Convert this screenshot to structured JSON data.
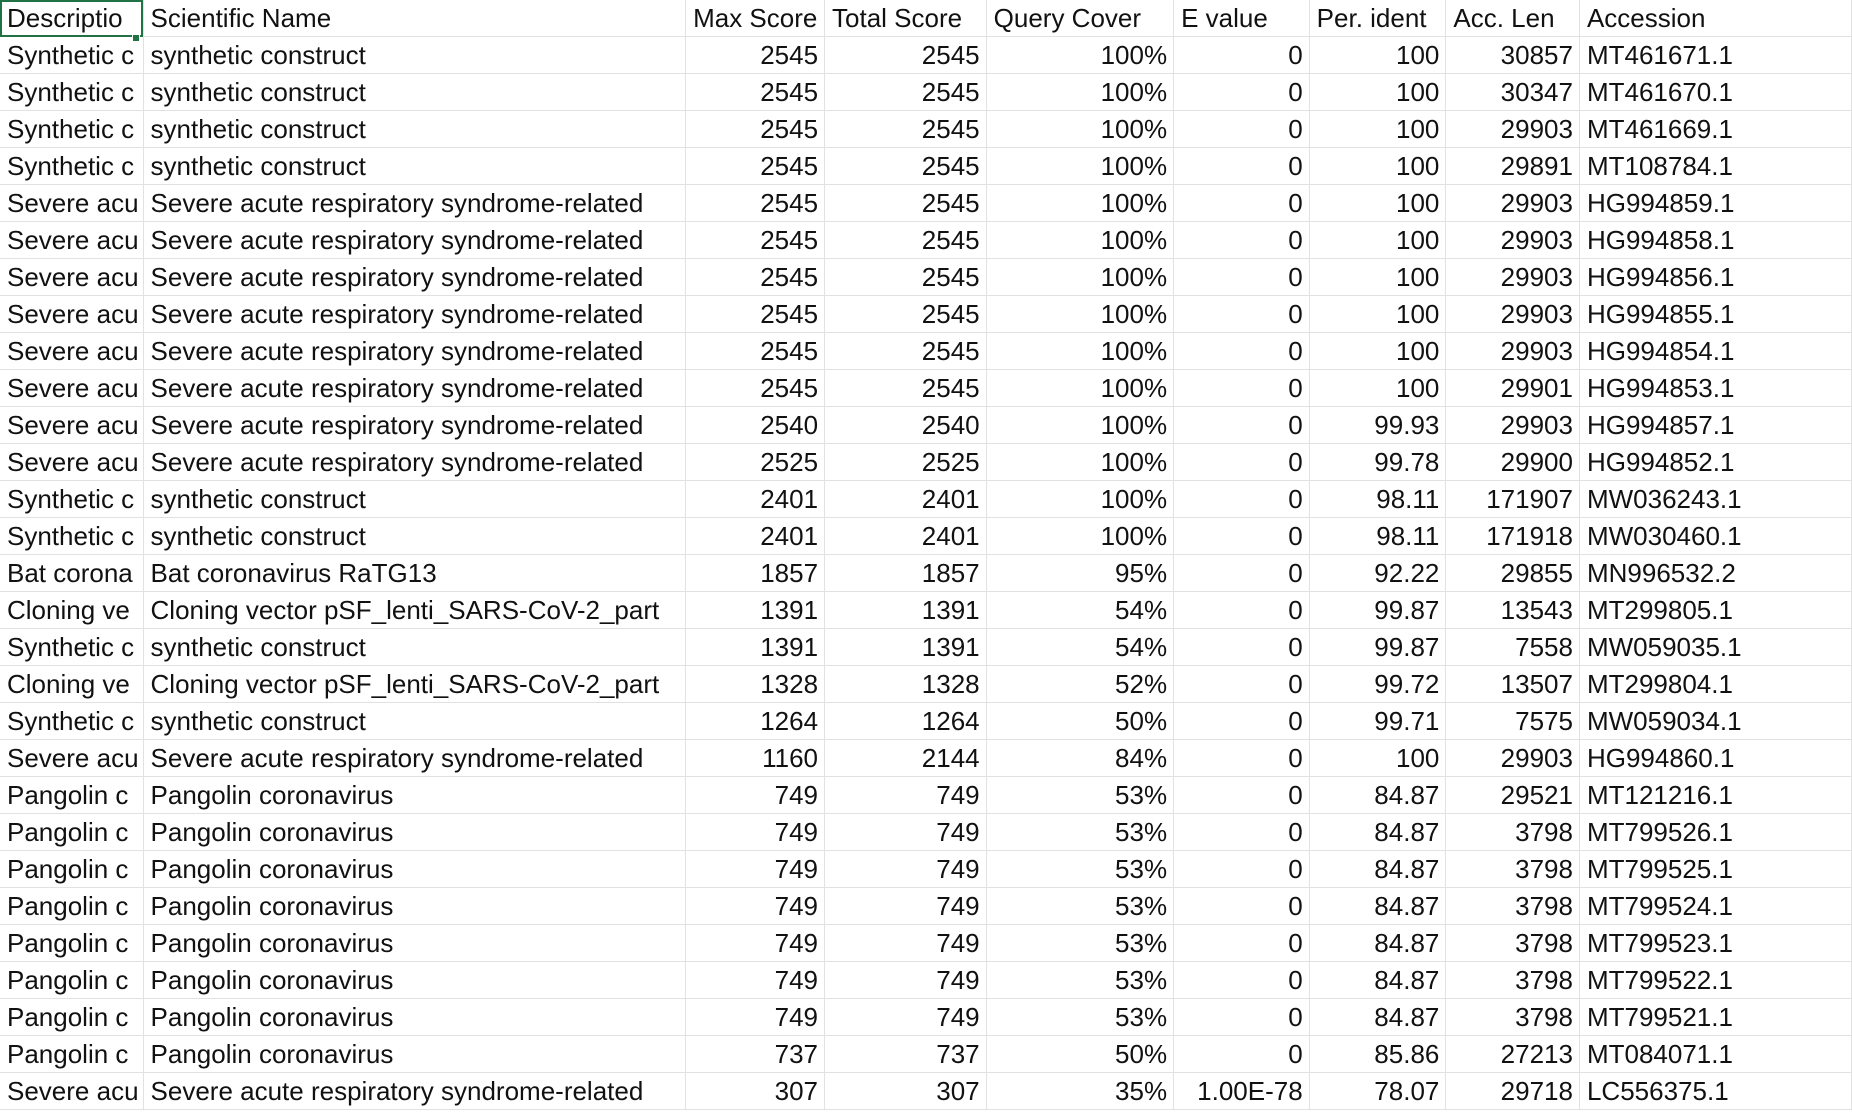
{
  "sheet": {
    "headers": [
      "Descriptio",
      "Scientific Name",
      "Max Score",
      "Total Score",
      "Query Cover",
      "E value",
      "Per. ident",
      "Acc. Len",
      "Accession"
    ],
    "rows": [
      [
        "Synthetic c",
        "synthetic construct",
        "2545",
        "2545",
        "100%",
        "0",
        "100",
        "30857",
        "MT461671.1"
      ],
      [
        "Synthetic c",
        "synthetic construct",
        "2545",
        "2545",
        "100%",
        "0",
        "100",
        "30347",
        "MT461670.1"
      ],
      [
        "Synthetic c",
        "synthetic construct",
        "2545",
        "2545",
        "100%",
        "0",
        "100",
        "29903",
        "MT461669.1"
      ],
      [
        "Synthetic c",
        "synthetic construct",
        "2545",
        "2545",
        "100%",
        "0",
        "100",
        "29891",
        "MT108784.1"
      ],
      [
        "Severe acu",
        "Severe acute respiratory syndrome-related",
        "2545",
        "2545",
        "100%",
        "0",
        "100",
        "29903",
        "HG994859.1"
      ],
      [
        "Severe acu",
        "Severe acute respiratory syndrome-related",
        "2545",
        "2545",
        "100%",
        "0",
        "100",
        "29903",
        "HG994858.1"
      ],
      [
        "Severe acu",
        "Severe acute respiratory syndrome-related",
        "2545",
        "2545",
        "100%",
        "0",
        "100",
        "29903",
        "HG994856.1"
      ],
      [
        "Severe acu",
        "Severe acute respiratory syndrome-related",
        "2545",
        "2545",
        "100%",
        "0",
        "100",
        "29903",
        "HG994855.1"
      ],
      [
        "Severe acu",
        "Severe acute respiratory syndrome-related",
        "2545",
        "2545",
        "100%",
        "0",
        "100",
        "29903",
        "HG994854.1"
      ],
      [
        "Severe acu",
        "Severe acute respiratory syndrome-related",
        "2545",
        "2545",
        "100%",
        "0",
        "100",
        "29901",
        "HG994853.1"
      ],
      [
        "Severe acu",
        "Severe acute respiratory syndrome-related",
        "2540",
        "2540",
        "100%",
        "0",
        "99.93",
        "29903",
        "HG994857.1"
      ],
      [
        "Severe acu",
        "Severe acute respiratory syndrome-related",
        "2525",
        "2525",
        "100%",
        "0",
        "99.78",
        "29900",
        "HG994852.1"
      ],
      [
        "Synthetic c",
        "synthetic construct",
        "2401",
        "2401",
        "100%",
        "0",
        "98.11",
        "171907",
        "MW036243.1"
      ],
      [
        "Synthetic c",
        "synthetic construct",
        "2401",
        "2401",
        "100%",
        "0",
        "98.11",
        "171918",
        "MW030460.1"
      ],
      [
        "Bat corona",
        "Bat coronavirus RaTG13",
        "1857",
        "1857",
        "95%",
        "0",
        "92.22",
        "29855",
        "MN996532.2"
      ],
      [
        "Cloning ve",
        "Cloning vector pSF_lenti_SARS-CoV-2_part",
        "1391",
        "1391",
        "54%",
        "0",
        "99.87",
        "13543",
        "MT299805.1"
      ],
      [
        "Synthetic c",
        "synthetic construct",
        "1391",
        "1391",
        "54%",
        "0",
        "99.87",
        "7558",
        "MW059035.1"
      ],
      [
        "Cloning ve",
        "Cloning vector pSF_lenti_SARS-CoV-2_part",
        "1328",
        "1328",
        "52%",
        "0",
        "99.72",
        "13507",
        "MT299804.1"
      ],
      [
        "Synthetic c",
        "synthetic construct",
        "1264",
        "1264",
        "50%",
        "0",
        "99.71",
        "7575",
        "MW059034.1"
      ],
      [
        "Severe acu",
        "Severe acute respiratory syndrome-related",
        "1160",
        "2144",
        "84%",
        "0",
        "100",
        "29903",
        "HG994860.1"
      ],
      [
        "Pangolin c",
        "Pangolin coronavirus",
        "749",
        "749",
        "53%",
        "0",
        "84.87",
        "29521",
        "MT121216.1"
      ],
      [
        "Pangolin c",
        "Pangolin coronavirus",
        "749",
        "749",
        "53%",
        "0",
        "84.87",
        "3798",
        "MT799526.1"
      ],
      [
        "Pangolin c",
        "Pangolin coronavirus",
        "749",
        "749",
        "53%",
        "0",
        "84.87",
        "3798",
        "MT799525.1"
      ],
      [
        "Pangolin c",
        "Pangolin coronavirus",
        "749",
        "749",
        "53%",
        "0",
        "84.87",
        "3798",
        "MT799524.1"
      ],
      [
        "Pangolin c",
        "Pangolin coronavirus",
        "749",
        "749",
        "53%",
        "0",
        "84.87",
        "3798",
        "MT799523.1"
      ],
      [
        "Pangolin c",
        "Pangolin coronavirus",
        "749",
        "749",
        "53%",
        "0",
        "84.87",
        "3798",
        "MT799522.1"
      ],
      [
        "Pangolin c",
        "Pangolin coronavirus",
        "749",
        "749",
        "53%",
        "0",
        "84.87",
        "3798",
        "MT799521.1"
      ],
      [
        "Pangolin c",
        "Pangolin coronavirus",
        "737",
        "737",
        "50%",
        "0",
        "85.86",
        "27213",
        "MT084071.1"
      ],
      [
        "Severe acu",
        "Severe acute respiratory syndrome-related",
        "307",
        "307",
        "35%",
        "1.00E-78",
        "78.07",
        "29718",
        "LC556375.1"
      ]
    ],
    "numeric_cols": [
      2,
      3,
      4,
      5,
      6,
      7
    ],
    "active_cell_color": "#217346"
  }
}
